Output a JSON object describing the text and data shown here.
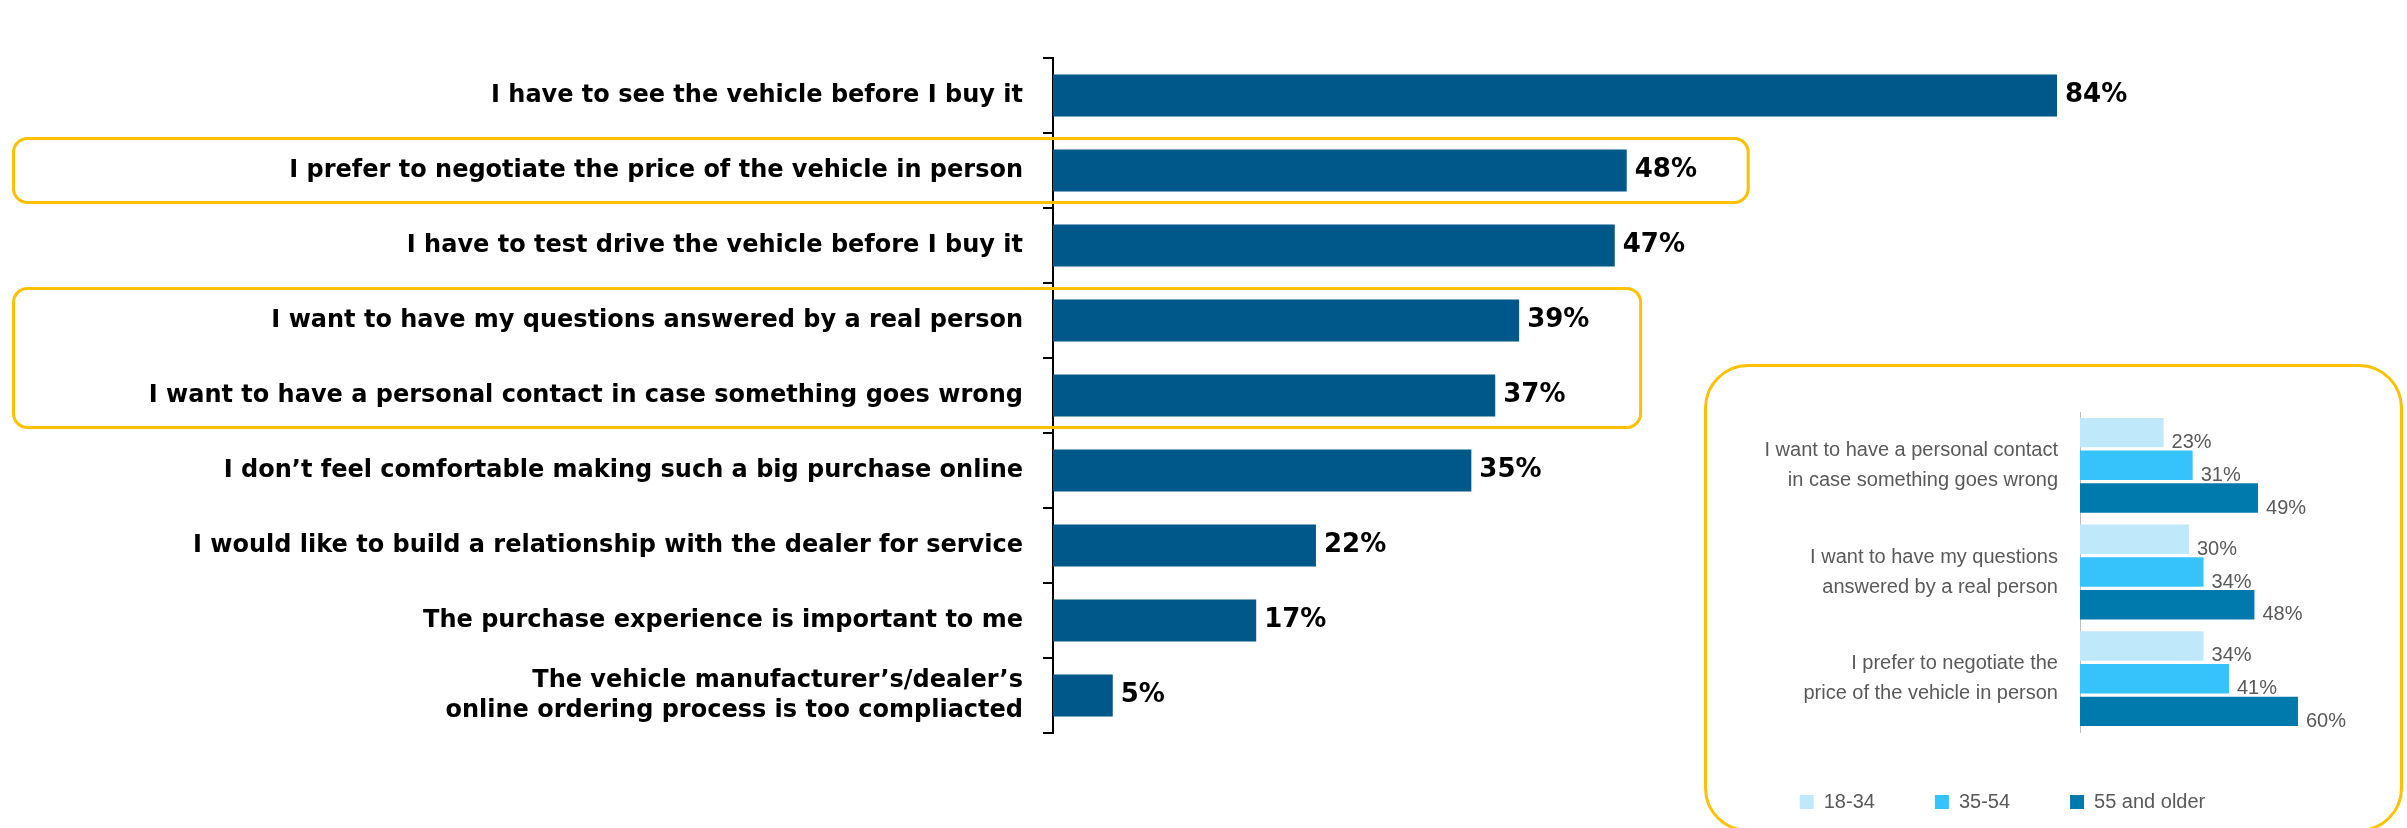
{
  "chart_data": [
    {
      "type": "bar",
      "orientation": "horizontal",
      "categories": [
        "I have to see the vehicle before I buy it",
        "I prefer to negotiate the price of the vehicle in person",
        "I have to test drive the vehicle before I buy it",
        "I want to have my questions answered by a real person",
        "I want to have a personal contact in case something goes wrong",
        "I don’t feel comfortable making such a big purchase online",
        "I would like to build a relationship with the dealer for service",
        "The purchase experience is important to me",
        "The vehicle manufacturer’s/dealer’s online ordering process is too compliacted"
      ],
      "values": [
        84,
        48,
        47,
        39,
        37,
        35,
        22,
        17,
        5
      ],
      "value_labels": [
        "84%",
        "48%",
        "47%",
        "39%",
        "37%",
        "35%",
        "22%",
        "17%",
        "5%"
      ],
      "color": "#00578a",
      "tick_labels": "y"
    },
    {
      "type": "bar",
      "orientation": "horizontal",
      "categories": [
        "I want to have a personal contact in case something goes wrong",
        "I want to have my questions answered by a real person",
        "I prefer to negotiate the price of the vehicle in person"
      ],
      "series": [
        {
          "name": "18-34",
          "color": "#bfe9fb",
          "values": [
            23,
            30,
            34
          ],
          "value_labels": [
            "23%",
            "30%",
            "34%"
          ]
        },
        {
          "name": "35-54",
          "color": "#36c3fb",
          "values": [
            31,
            34,
            41
          ],
          "value_labels": [
            "31%",
            "34%",
            "41%"
          ]
        },
        {
          "name": "55 and older",
          "color": "#0079ad",
          "values": [
            49,
            48,
            60
          ],
          "value_labels": [
            "49%",
            "48%",
            "60%"
          ]
        }
      ],
      "tick_labels": "y",
      "legend": "bottom"
    }
  ]
}
